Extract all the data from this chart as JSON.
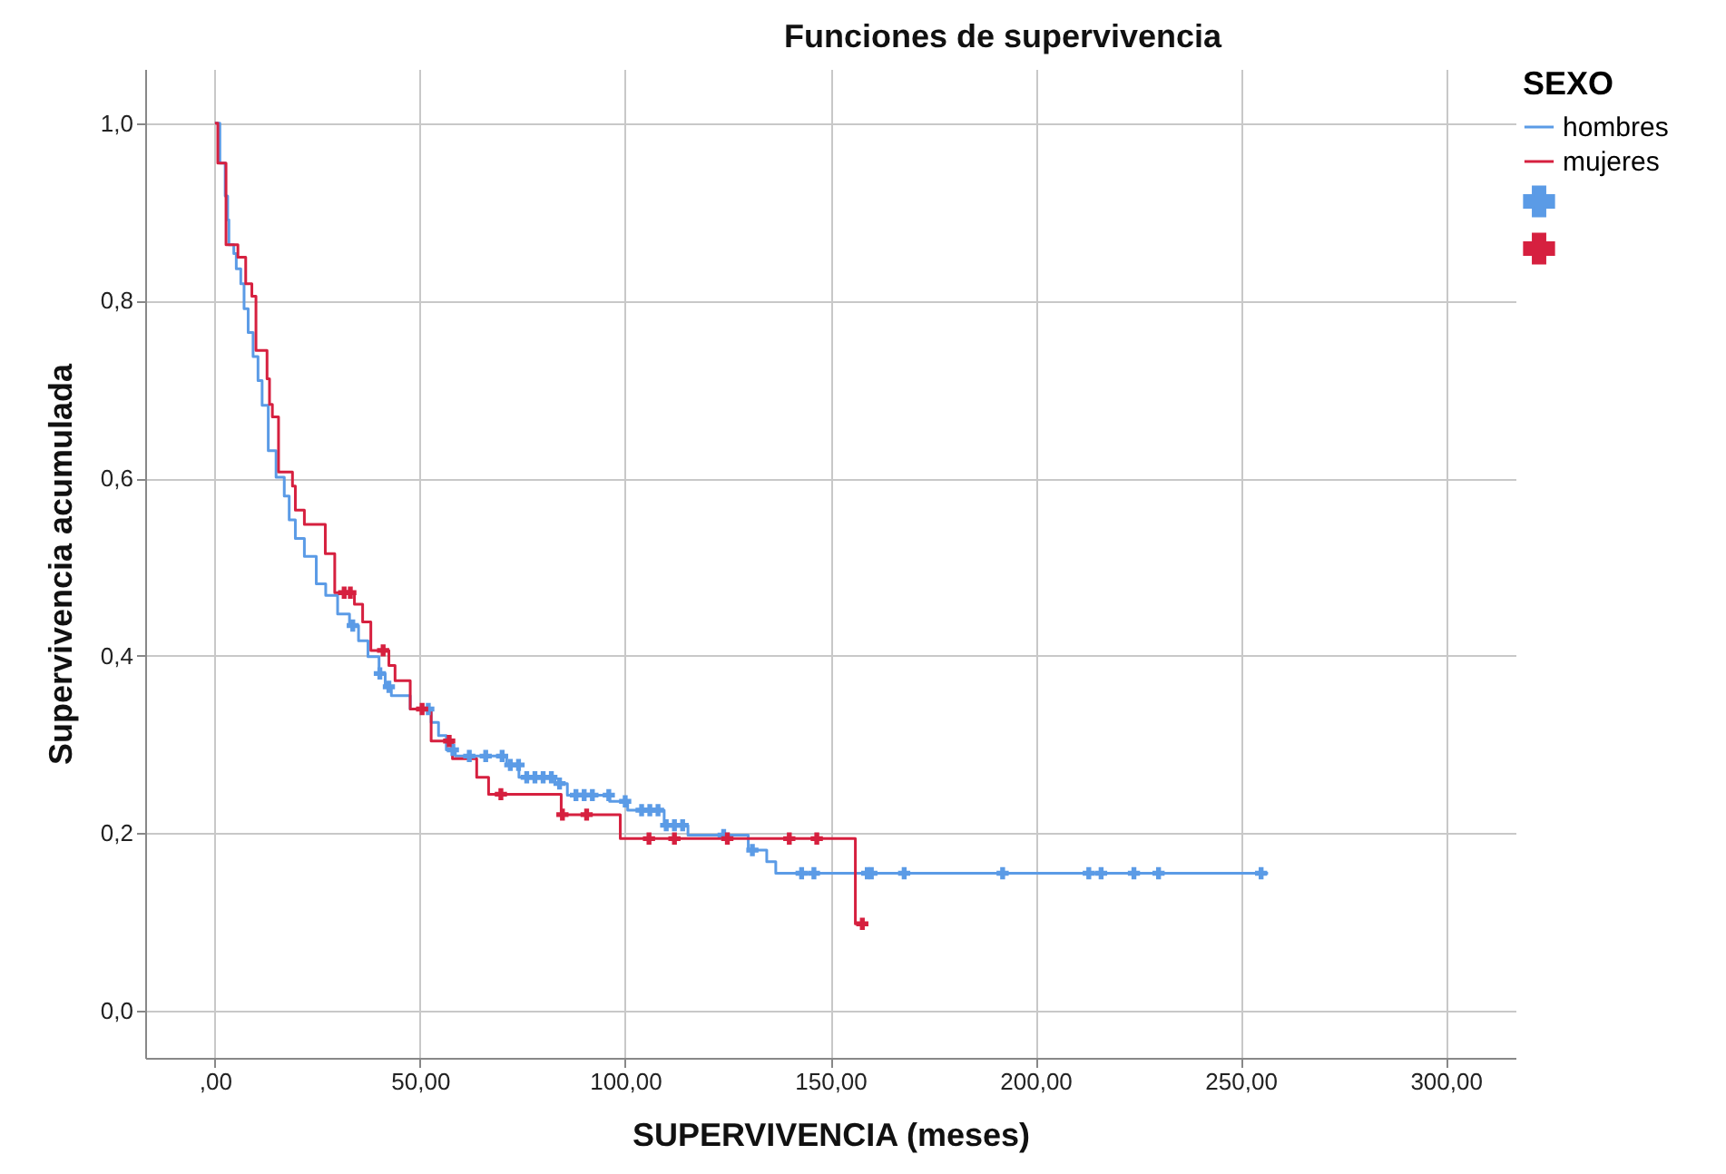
{
  "chart_data": {
    "type": "step",
    "title": "Funciones de supervivencia",
    "xlabel": "SUPERVIVENCIA (meses)",
    "ylabel": "Supervivencia acumulada",
    "legend_title": "SEXO",
    "legend": "right",
    "grid": true,
    "xlim": [
      -17,
      317
    ],
    "ylim": [
      -0.053,
      1.061
    ],
    "xticks": [
      {
        "value": 0,
        "label": ",00"
      },
      {
        "value": 50,
        "label": "50,00"
      },
      {
        "value": 100,
        "label": "100,00"
      },
      {
        "value": 150,
        "label": "150,00"
      },
      {
        "value": 200,
        "label": "200,00"
      },
      {
        "value": 250,
        "label": "250,00"
      },
      {
        "value": 300,
        "label": "300,00"
      }
    ],
    "yticks": [
      {
        "value": 0,
        "label": "0,0"
      },
      {
        "value": 0.2,
        "label": "0,2"
      },
      {
        "value": 0.4,
        "label": "0,4"
      },
      {
        "value": 0.6,
        "label": "0,6"
      },
      {
        "value": 0.8,
        "label": "0,8"
      },
      {
        "value": 1,
        "label": "1,0"
      }
    ],
    "series": [
      {
        "name": "hombres",
        "color": "#5b9be6",
        "x": [
          0,
          1.2,
          2.5,
          3.1,
          3.4,
          4.6,
          5.2,
          6.3,
          7.1,
          8.1,
          9.3,
          10.5,
          11.5,
          13,
          14.9,
          16.9,
          18.1,
          19.6,
          21.8,
          24.7,
          27,
          29.9,
          32.8,
          35,
          37.3,
          40,
          41.5,
          43,
          47.6,
          52.7,
          54.5,
          56.4,
          58.6,
          71.1,
          74.1,
          82.9,
          85.9,
          96.2,
          100.6,
          109.5,
          115.3,
          130,
          134.5,
          136.7,
          256.7
        ],
        "values": [
          1,
          0.955,
          0.918,
          0.891,
          0.863,
          0.853,
          0.836,
          0.819,
          0.791,
          0.764,
          0.737,
          0.71,
          0.682,
          0.631,
          0.601,
          0.58,
          0.553,
          0.532,
          0.512,
          0.481,
          0.468,
          0.447,
          0.434,
          0.417,
          0.399,
          0.38,
          0.365,
          0.355,
          0.34,
          0.325,
          0.31,
          0.294,
          0.287,
          0.277,
          0.263,
          0.256,
          0.243,
          0.236,
          0.226,
          0.209,
          0.198,
          0.181,
          0.168,
          0.155,
          0.155
        ]
      },
      {
        "name": "mujeres",
        "color": "#d6203f",
        "x": [
          0,
          0.7,
          2.7,
          5.6,
          7.5,
          9,
          10,
          12.7,
          13.3,
          14,
          15.5,
          18.9,
          19.6,
          21.8,
          26.9,
          29.2,
          34,
          36,
          38,
          42.4,
          43.9,
          47.6,
          52.7,
          57.9,
          63.8,
          66.7,
          84.4,
          98.8,
          156.1,
          158
        ],
        "values": [
          1,
          0.955,
          0.863,
          0.849,
          0.819,
          0.805,
          0.744,
          0.712,
          0.683,
          0.669,
          0.607,
          0.591,
          0.564,
          0.548,
          0.515,
          0.471,
          0.458,
          0.438,
          0.406,
          0.389,
          0.372,
          0.34,
          0.304,
          0.284,
          0.263,
          0.244,
          0.221,
          0.194,
          0.098,
          0.098
        ]
      },
      {
        "type": "scatter",
        "marker": "cross",
        "color": "#5b9be6",
        "x": [
          33.6,
          40.2,
          42.4,
          52,
          58,
          62,
          66,
          70,
          72,
          74,
          76,
          78,
          80,
          82,
          84,
          88,
          90,
          92,
          96,
          100,
          104,
          106,
          108,
          110,
          112,
          114,
          124,
          131,
          143,
          146,
          159,
          160,
          168,
          192,
          213,
          216,
          224,
          230,
          255
        ],
        "values": [
          0.434,
          0.38,
          0.365,
          0.34,
          0.294,
          0.287,
          0.287,
          0.287,
          0.277,
          0.277,
          0.263,
          0.263,
          0.263,
          0.263,
          0.256,
          0.243,
          0.243,
          0.243,
          0.243,
          0.236,
          0.226,
          0.226,
          0.226,
          0.209,
          0.209,
          0.209,
          0.198,
          0.181,
          0.155,
          0.155,
          0.155,
          0.155,
          0.155,
          0.155,
          0.155,
          0.155,
          0.155,
          0.155,
          0.155
        ]
      },
      {
        "type": "scatter",
        "marker": "cross",
        "color": "#d6203f",
        "x": [
          31.5,
          33,
          41,
          50.5,
          57.1,
          69.7,
          84.7,
          90.6,
          105.8,
          112,
          124.9,
          140,
          146.7,
          157.8
        ],
        "values": [
          0.471,
          0.471,
          0.406,
          0.34,
          0.304,
          0.244,
          0.221,
          0.221,
          0.194,
          0.194,
          0.194,
          0.194,
          0.194,
          0.098
        ]
      }
    ]
  }
}
